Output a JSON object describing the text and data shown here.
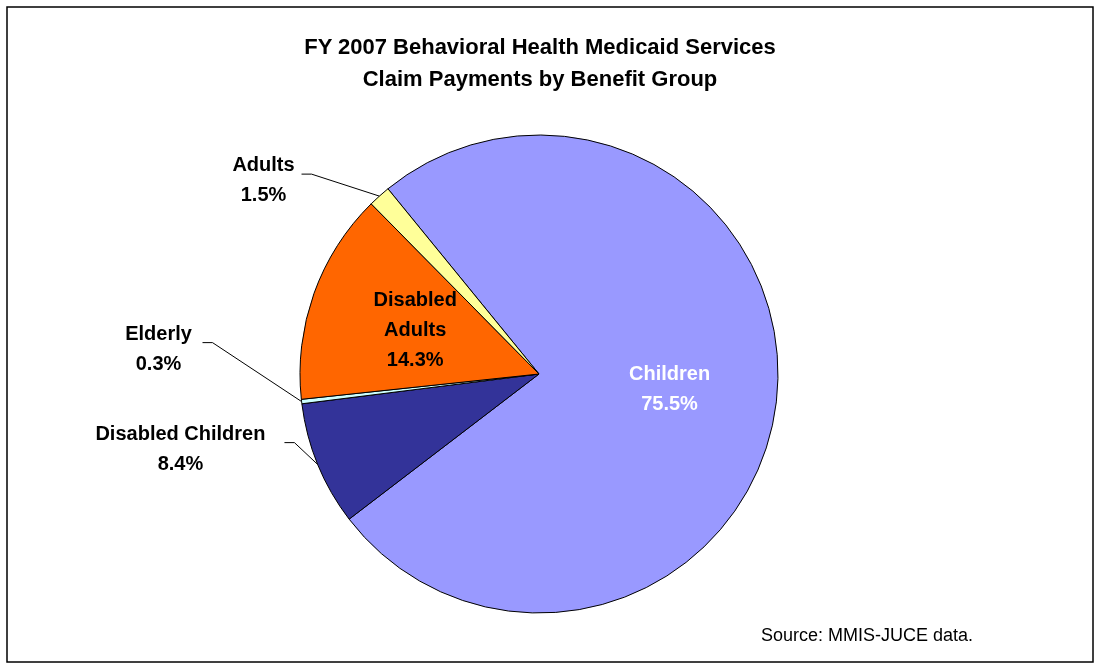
{
  "chart_data": {
    "type": "pie",
    "title": "FY 2007 Behavioral Health Medicaid Services Claim Payments by Benefit Group",
    "categories": [
      "Children",
      "Disabled Children",
      "Elderly",
      "Disabled Adults",
      "Adults"
    ],
    "values": [
      75.5,
      8.4,
      0.3,
      14.3,
      1.5
    ],
    "value_labels": [
      "75.5%",
      "8.4%",
      "0.3%",
      "14.3%",
      "1.5%"
    ],
    "colors": [
      "#9999ff",
      "#333399",
      "#ccffff",
      "#ff6600",
      "#ffff99"
    ],
    "annotations": [
      "Source: MMIS-JUCE data."
    ]
  }
}
